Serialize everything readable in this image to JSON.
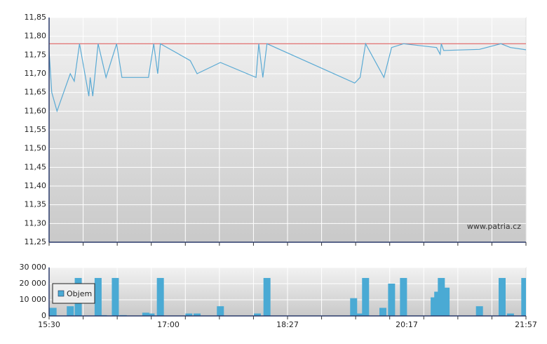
{
  "chart_data": [
    {
      "type": "line",
      "color": "#5aaad4",
      "watermark": "www.patria.cz",
      "reference_line": 11.78,
      "reference_color": "#e06262",
      "x": [
        "15:30",
        "15:32",
        "15:36",
        "15:46",
        "15:49",
        "15:53",
        "16:00",
        "16:01",
        "16:03",
        "16:07",
        "16:13",
        "16:21",
        "16:25",
        "16:45",
        "16:49",
        "16:52",
        "16:54",
        "17:16",
        "17:21",
        "17:38",
        "18:04",
        "18:06",
        "18:09",
        "18:12",
        "19:29",
        "19:34",
        "19:39",
        "19:56",
        "20:03",
        "20:14",
        "20:42",
        "20:45",
        "20:46",
        "20:48",
        "21:18",
        "21:36",
        "21:44",
        "21:57"
      ],
      "values": [
        11.76,
        11.65,
        11.6,
        11.7,
        11.68,
        11.78,
        11.64,
        11.69,
        11.64,
        11.78,
        11.69,
        11.78,
        11.69,
        11.69,
        11.78,
        11.7,
        11.78,
        11.735,
        11.7,
        11.73,
        11.69,
        11.78,
        11.69,
        11.78,
        11.675,
        11.69,
        11.78,
        11.69,
        11.77,
        11.78,
        11.77,
        11.752,
        11.78,
        11.762,
        11.765,
        11.78,
        11.77,
        11.764
      ],
      "ylim": [
        11.25,
        11.85
      ],
      "yticks": [
        {
          "value": 11.25,
          "label": "11,25"
        },
        {
          "value": 11.3,
          "label": "11,30"
        },
        {
          "value": 11.35,
          "label": "11,35"
        },
        {
          "value": 11.4,
          "label": "11,40"
        },
        {
          "value": 11.45,
          "label": "11,45"
        },
        {
          "value": 11.5,
          "label": "11,50"
        },
        {
          "value": 11.55,
          "label": "11,55"
        },
        {
          "value": 11.6,
          "label": "11,60"
        },
        {
          "value": 11.65,
          "label": "11,65"
        },
        {
          "value": 11.7,
          "label": "11,70"
        },
        {
          "value": 11.75,
          "label": "11,75"
        },
        {
          "value": 11.8,
          "label": "11,80"
        },
        {
          "value": 11.85,
          "label": "11,85"
        }
      ],
      "grid": true
    },
    {
      "type": "bar",
      "legend": "upper left",
      "series": [
        {
          "name": "Objem",
          "color": "#4aaad4",
          "x": [
            "15:33",
            "15:46",
            "15:52",
            "16:07",
            "16:11",
            "16:20",
            "16:26",
            "16:43",
            "16:47",
            "16:54",
            "17:15",
            "17:21",
            "17:38",
            "18:05",
            "18:12",
            "19:28",
            "19:34",
            "19:39",
            "19:55",
            "20:03",
            "20:14",
            "20:40",
            "20:43",
            "20:46",
            "20:50",
            "21:18",
            "21:37",
            "21:44",
            "21:56"
          ],
          "values": [
            5000,
            6000,
            23500,
            23500,
            500,
            23500,
            500,
            2000,
            1500,
            23500,
            1500,
            1500,
            6000,
            1500,
            23500,
            11000,
            1500,
            23500,
            5000,
            20000,
            23500,
            11500,
            15000,
            23500,
            17500,
            6000,
            23500,
            1500,
            23500
          ]
        }
      ],
      "ylim": [
        0,
        30000
      ],
      "yticks": [
        0,
        {
          "value": 10000,
          "label": "10 000"
        },
        {
          "value": 20000,
          "label": "20 000"
        },
        {
          "value": 30000,
          "label": "30 000"
        }
      ],
      "xticks": [
        "15:30",
        "17:00",
        "18:27",
        "20:17",
        "21:57"
      ],
      "grid": true
    }
  ]
}
